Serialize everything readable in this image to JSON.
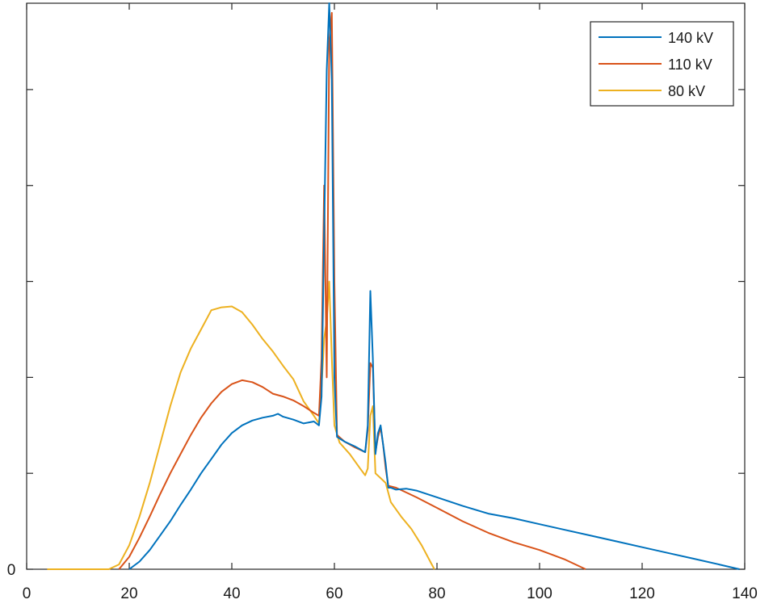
{
  "chart_data": {
    "type": "line",
    "title": "",
    "xlabel": "",
    "ylabel": "",
    "xlim": [
      0,
      140
    ],
    "ylim": [
      0,
      5.9
    ],
    "x_ticks": [
      0,
      20,
      40,
      60,
      80,
      100,
      120,
      140
    ],
    "x_tick_labels": [
      "0",
      "20",
      "40",
      "60",
      "80",
      "100",
      "120",
      "140"
    ],
    "y_ticks": [
      0,
      1,
      2,
      3,
      4,
      5
    ],
    "y_tick_labels": [
      "0",
      "",
      "",
      "",
      "",
      ""
    ],
    "grid": false,
    "legend_position": "top-right",
    "series": [
      {
        "name": "140 kV",
        "color": "#0072BD",
        "points": [
          [
            20,
            0
          ],
          [
            22,
            0.08
          ],
          [
            24,
            0.2
          ],
          [
            26,
            0.35
          ],
          [
            28,
            0.5
          ],
          [
            30,
            0.67
          ],
          [
            32,
            0.83
          ],
          [
            34,
            1.0
          ],
          [
            36,
            1.15
          ],
          [
            38,
            1.3
          ],
          [
            40,
            1.42
          ],
          [
            42,
            1.5
          ],
          [
            44,
            1.55
          ],
          [
            46,
            1.58
          ],
          [
            48,
            1.6
          ],
          [
            49,
            1.62
          ],
          [
            50,
            1.59
          ],
          [
            52,
            1.56
          ],
          [
            54,
            1.52
          ],
          [
            56,
            1.54
          ],
          [
            57,
            1.5
          ],
          [
            57.5,
            1.8
          ],
          [
            58,
            3.5
          ],
          [
            58.5,
            5.2
          ],
          [
            59,
            5.9
          ],
          [
            59.5,
            5.1
          ],
          [
            60,
            2.0
          ],
          [
            60.5,
            1.38
          ],
          [
            62,
            1.33
          ],
          [
            64,
            1.28
          ],
          [
            66,
            1.22
          ],
          [
            66.5,
            1.5
          ],
          [
            67,
            2.9
          ],
          [
            67.5,
            2.2
          ],
          [
            68,
            1.2
          ],
          [
            68.5,
            1.42
          ],
          [
            69,
            1.5
          ],
          [
            69.5,
            1.3
          ],
          [
            70,
            1.1
          ],
          [
            70.5,
            0.85
          ],
          [
            71,
            0.85
          ],
          [
            72,
            0.83
          ],
          [
            74,
            0.84
          ],
          [
            76,
            0.82
          ],
          [
            80,
            0.75
          ],
          [
            85,
            0.66
          ],
          [
            90,
            0.58
          ],
          [
            95,
            0.53
          ],
          [
            100,
            0.47
          ],
          [
            105,
            0.41
          ],
          [
            110,
            0.35
          ],
          [
            115,
            0.29
          ],
          [
            120,
            0.23
          ],
          [
            125,
            0.17
          ],
          [
            130,
            0.11
          ],
          [
            135,
            0.05
          ],
          [
            139,
            0
          ]
        ]
      },
      {
        "name": "110 kV",
        "color": "#D95319",
        "points": [
          [
            18,
            0
          ],
          [
            20,
            0.13
          ],
          [
            22,
            0.33
          ],
          [
            24,
            0.55
          ],
          [
            26,
            0.78
          ],
          [
            28,
            1.0
          ],
          [
            30,
            1.2
          ],
          [
            32,
            1.4
          ],
          [
            34,
            1.58
          ],
          [
            36,
            1.73
          ],
          [
            38,
            1.85
          ],
          [
            40,
            1.93
          ],
          [
            42,
            1.97
          ],
          [
            44,
            1.95
          ],
          [
            46,
            1.9
          ],
          [
            48,
            1.83
          ],
          [
            50,
            1.8
          ],
          [
            52,
            1.76
          ],
          [
            54,
            1.7
          ],
          [
            56,
            1.63
          ],
          [
            57,
            1.6
          ],
          [
            57.5,
            2.2
          ],
          [
            58,
            4.0
          ],
          [
            58.5,
            2.0
          ],
          [
            59,
            5.5
          ],
          [
            59.5,
            5.8
          ],
          [
            60,
            3.0
          ],
          [
            60.5,
            1.4
          ],
          [
            62,
            1.33
          ],
          [
            64,
            1.27
          ],
          [
            66,
            1.22
          ],
          [
            66.5,
            1.45
          ],
          [
            67,
            2.15
          ],
          [
            67.5,
            2.1
          ],
          [
            68,
            1.22
          ],
          [
            68.5,
            1.38
          ],
          [
            69,
            1.48
          ],
          [
            69.5,
            1.3
          ],
          [
            70,
            1.05
          ],
          [
            70.5,
            0.87
          ],
          [
            72,
            0.85
          ],
          [
            74,
            0.8
          ],
          [
            76,
            0.75
          ],
          [
            80,
            0.64
          ],
          [
            85,
            0.5
          ],
          [
            90,
            0.38
          ],
          [
            95,
            0.28
          ],
          [
            100,
            0.2
          ],
          [
            105,
            0.1
          ],
          [
            109,
            0
          ]
        ]
      },
      {
        "name": "80 kV",
        "color": "#EDB120",
        "points": [
          [
            4,
            0
          ],
          [
            10,
            0
          ],
          [
            16,
            0
          ],
          [
            18,
            0.05
          ],
          [
            20,
            0.25
          ],
          [
            22,
            0.55
          ],
          [
            24,
            0.9
          ],
          [
            26,
            1.3
          ],
          [
            28,
            1.7
          ],
          [
            30,
            2.05
          ],
          [
            32,
            2.3
          ],
          [
            34,
            2.5
          ],
          [
            36,
            2.7
          ],
          [
            38,
            2.73
          ],
          [
            40,
            2.74
          ],
          [
            42,
            2.68
          ],
          [
            44,
            2.55
          ],
          [
            46,
            2.4
          ],
          [
            48,
            2.27
          ],
          [
            50,
            2.12
          ],
          [
            52,
            1.98
          ],
          [
            54,
            1.75
          ],
          [
            56,
            1.6
          ],
          [
            57,
            1.52
          ],
          [
            57.5,
            1.9
          ],
          [
            58,
            2.4
          ],
          [
            58.5,
            2.6
          ],
          [
            59,
            3.0
          ],
          [
            59.5,
            2.2
          ],
          [
            60,
            1.5
          ],
          [
            61,
            1.32
          ],
          [
            63,
            1.2
          ],
          [
            65,
            1.05
          ],
          [
            66,
            0.98
          ],
          [
            66.5,
            1.05
          ],
          [
            67,
            1.6
          ],
          [
            67.5,
            1.7
          ],
          [
            68,
            1.0
          ],
          [
            69,
            0.95
          ],
          [
            70,
            0.9
          ],
          [
            71,
            0.7
          ],
          [
            73,
            0.55
          ],
          [
            75,
            0.42
          ],
          [
            77,
            0.25
          ],
          [
            79,
            0.05
          ],
          [
            79.5,
            0
          ]
        ]
      }
    ]
  }
}
